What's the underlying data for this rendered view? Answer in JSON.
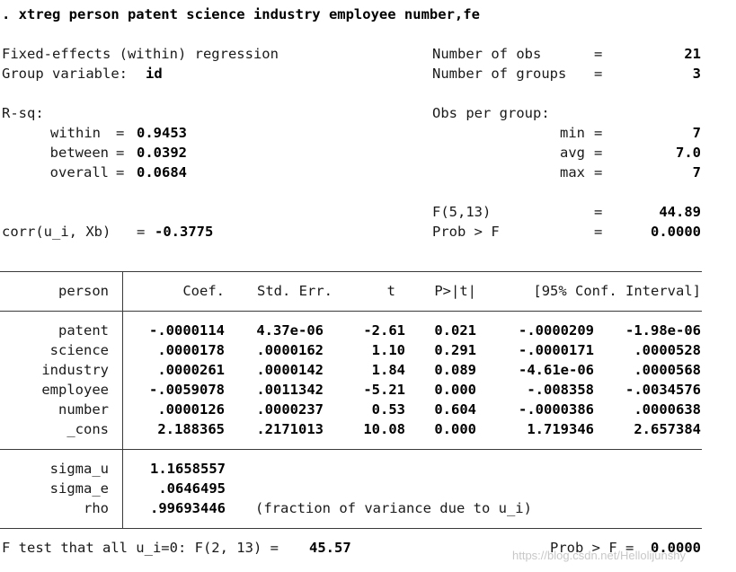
{
  "command": ". xtreg person patent science industry employee number,fe",
  "header": {
    "model_title": "Fixed-effects (within) regression",
    "group_var_label": "Group variable:",
    "group_var_value": "id",
    "nobs_label": "Number of obs",
    "nobs_value": "21",
    "ngroups_label": "Number of groups",
    "ngroups_value": "3",
    "rsq_label": "R-sq:",
    "within_label": "within",
    "within_value": "0.9453",
    "between_label": "between",
    "between_value": "0.0392",
    "overall_label": "overall",
    "overall_value": "0.0684",
    "obs_per_group_label": "Obs per group:",
    "min_label": "min",
    "min_value": "7",
    "avg_label": "avg",
    "avg_value": "7.0",
    "max_label": "max",
    "max_value": "7",
    "f_label": "F(5,13)",
    "f_value": "44.89",
    "corr_label": "corr(u_i, Xb)",
    "corr_value": "-0.3775",
    "prob_label": "Prob > F",
    "prob_value": "0.0000",
    "eq": "="
  },
  "table": {
    "depvar": "person",
    "columns": [
      "Coef.",
      "Std. Err.",
      "t",
      "P>|t|",
      "[95% Conf. Interval]"
    ],
    "rows": [
      {
        "name": "patent",
        "coef": "-.0000114",
        "se": "4.37e-06",
        "t": "-2.61",
        "p": "0.021",
        "lo": "-.0000209",
        "hi": "-1.98e-06"
      },
      {
        "name": "science",
        "coef": ".0000178",
        "se": ".0000162",
        "t": "1.10",
        "p": "0.291",
        "lo": "-.0000171",
        "hi": ".0000528"
      },
      {
        "name": "industry",
        "coef": ".0000261",
        "se": ".0000142",
        "t": "1.84",
        "p": "0.089",
        "lo": "-4.61e-06",
        "hi": ".0000568"
      },
      {
        "name": "employee",
        "coef": "-.0059078",
        "se": ".0011342",
        "t": "-5.21",
        "p": "0.000",
        "lo": "-.008358",
        "hi": "-.0034576"
      },
      {
        "name": "number",
        "coef": ".0000126",
        "se": ".0000237",
        "t": "0.53",
        "p": "0.604",
        "lo": "-.0000386",
        "hi": ".0000638"
      },
      {
        "name": "_cons",
        "coef": "2.188365",
        "se": ".2171013",
        "t": "10.08",
        "p": "0.000",
        "lo": "1.719346",
        "hi": "2.657384"
      }
    ],
    "sigma_u_label": "sigma_u",
    "sigma_u_value": "1.1658557",
    "sigma_e_label": "sigma_e",
    "sigma_e_value": ".0646495",
    "rho_label": "rho",
    "rho_value": ".99693446",
    "rho_note": "(fraction of variance due to u_i)"
  },
  "footer": {
    "ftest_label": "F test that all u_i=0: F(2, 13) =",
    "ftest_value": "45.57",
    "prob_label": "Prob > F =",
    "prob_value": "0.0000"
  },
  "watermark": "https://blog.csdn.net/Hellolijunshy"
}
